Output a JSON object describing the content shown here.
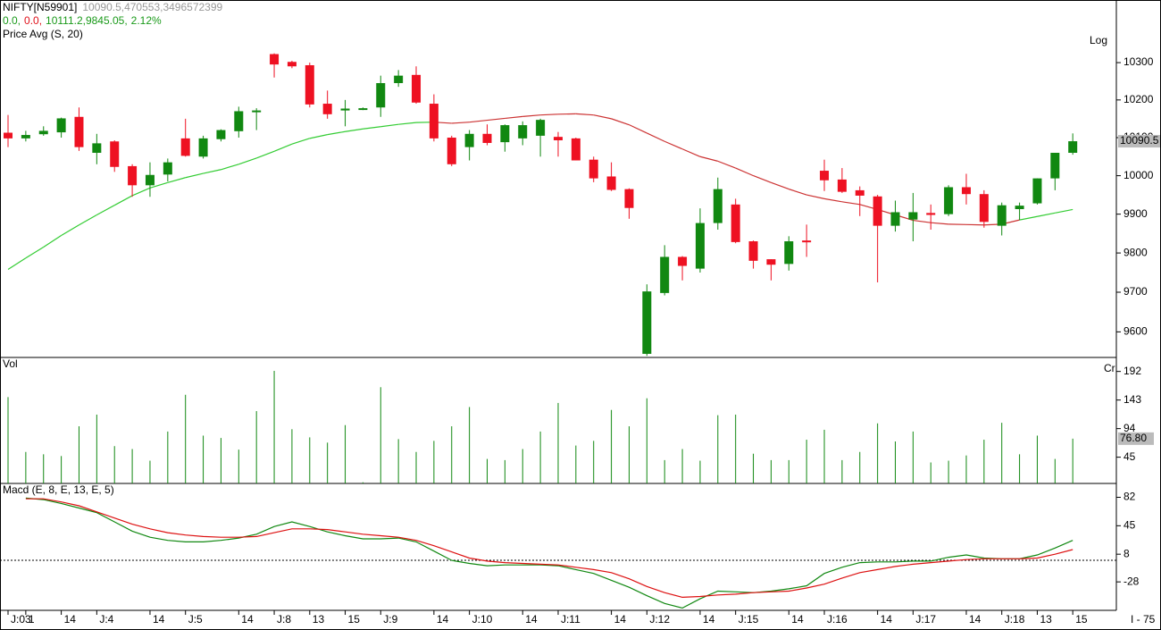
{
  "chart_data": [
    {
      "type": "candlestick",
      "title": "NIFTY[N59901]",
      "subtitle": "10090.5,470553,3496572399",
      "stats": [
        {
          "text": "0.0,",
          "color": "#1a9a1a"
        },
        {
          "text": "0.0,",
          "color": "#e0101a"
        },
        {
          "text": "10111.2,9845.05,",
          "color": "#1a9a1a"
        },
        {
          "text": "2.12%",
          "color": "#1a9a1a"
        }
      ],
      "scale_label": "Log",
      "log_scale": true,
      "ylim": [
        9536,
        10470
      ],
      "yticks": [
        9600,
        9700,
        9800,
        9900,
        10000,
        10100,
        10200,
        10300
      ],
      "up_color": "#118811",
      "down_color": "#ee1122",
      "open": [
        10113,
        10098,
        10109,
        10114,
        10155,
        10060,
        10090,
        10025,
        9975,
        10003,
        10098,
        10050,
        10096,
        10117,
        10168,
        10323,
        10302,
        10293,
        10190,
        10172,
        10176,
        10180,
        10245,
        10267,
        10190,
        10100,
        10075,
        10110,
        10088,
        10098,
        10105,
        10102,
        10098,
        10042,
        9998,
        9965,
        9545,
        9698,
        9790,
        9760,
        9877,
        9925,
        9830,
        9784,
        9772,
        9832,
        10013,
        9990,
        9962,
        9946,
        9870,
        9886,
        9903,
        9900,
        9970,
        9952,
        9870,
        9913,
        9928,
        9993,
        10060
      ],
      "high": [
        10160,
        10118,
        10130,
        10153,
        10180,
        10110,
        10093,
        10030,
        10035,
        10045,
        10150,
        10105,
        10122,
        10182,
        10178,
        10325,
        10305,
        10300,
        10225,
        10200,
        10180,
        10265,
        10280,
        10290,
        10215,
        10105,
        10120,
        10135,
        10135,
        10143,
        10150,
        10115,
        10100,
        10050,
        10035,
        9967,
        9720,
        9820,
        9792,
        9915,
        9995,
        9940,
        9832,
        9784,
        9843,
        9873,
        10042,
        10020,
        9972,
        9950,
        9935,
        9955,
        9925,
        9975,
        10005,
        9962,
        9930,
        9930,
        9993,
        10060,
        10111.2
      ],
      "low": [
        10075,
        10090,
        10105,
        10100,
        10065,
        10030,
        10010,
        9945,
        9945,
        9985,
        10050,
        10045,
        10090,
        10100,
        10120,
        10260,
        10285,
        10180,
        10150,
        10130,
        10173,
        10155,
        10235,
        10190,
        10090,
        10025,
        10040,
        10080,
        10063,
        10080,
        10050,
        10050,
        10040,
        9983,
        9960,
        9888,
        9540,
        9692,
        9730,
        9750,
        9860,
        9825,
        9760,
        9730,
        9755,
        9790,
        9960,
        9955,
        9895,
        9725,
        9855,
        9830,
        9860,
        9895,
        9925,
        9865,
        9845,
        9885,
        9925,
        9962,
        10055
      ],
      "close": [
        10098,
        10107,
        10118,
        10151,
        10075,
        10085,
        10023,
        9975,
        10002,
        10035,
        10052,
        10098,
        10120,
        10170,
        10172,
        10295,
        10290,
        10188,
        10162,
        10177,
        10178,
        10245,
        10265,
        10193,
        10098,
        10030,
        10110,
        10086,
        10133,
        10133,
        10147,
        10093,
        10040,
        9993,
        9963,
        9916,
        9702,
        9790,
        9767,
        9877,
        9965,
        9828,
        9780,
        9770,
        9830,
        9828,
        9988,
        9958,
        9948,
        9870,
        9905,
        9905,
        9898,
        9970,
        9952,
        9880,
        9923,
        9922,
        9993,
        10060,
        10090.5
      ],
      "ma": {
        "name": "Price Avg (S, 20)",
        "values": [
          9758,
          9787,
          9815,
          9845,
          9872,
          9898,
          9923,
          9948,
          9968,
          9982,
          9995,
          10006,
          10016,
          10030,
          10046,
          10064,
          10083,
          10098,
          10108,
          10116,
          10123,
          10129,
          10135,
          10140,
          10141,
          10138,
          10141,
          10146,
          10151,
          10156,
          10160,
          10162,
          10163,
          10160,
          10150,
          10134,
          10112,
          10090,
          10070,
          10050,
          10038,
          10020,
          10000,
          9982,
          9965,
          9950,
          9940,
          9932,
          9925,
          9912,
          9898,
          9884,
          9878,
          9874,
          9873,
          9872,
          9874,
          9885,
          9894,
          9903,
          9912
        ],
        "colors": [
          "#33cc33",
          "#33cc33",
          "#33cc33",
          "#33cc33",
          "#33cc33",
          "#33cc33",
          "#33cc33",
          "#33cc33",
          "#33cc33",
          "#33cc33",
          "#33cc33",
          "#33cc33",
          "#33cc33",
          "#33cc33",
          "#33cc33",
          "#33cc33",
          "#33cc33",
          "#33cc33",
          "#33cc33",
          "#33cc33",
          "#33cc33",
          "#33cc33",
          "#33cc33",
          "#33cc33",
          "#cc3333",
          "#cc3333",
          "#cc3333",
          "#cc3333",
          "#cc3333",
          "#cc3333",
          "#cc3333",
          "#cc3333",
          "#cc3333",
          "#cc3333",
          "#cc3333",
          "#cc3333",
          "#cc3333",
          "#cc3333",
          "#cc3333",
          "#cc3333",
          "#cc3333",
          "#cc3333",
          "#cc3333",
          "#cc3333",
          "#cc3333",
          "#cc3333",
          "#cc3333",
          "#cc3333",
          "#cc3333",
          "#cc3333",
          "#cc3333",
          "#cc3333",
          "#cc3333",
          "#cc3333",
          "#cc3333",
          "#cc3333",
          "#cc3333",
          "#33cc33",
          "#33cc33",
          "#33cc33",
          "#33cc33"
        ]
      }
    },
    {
      "type": "bar",
      "title": "Vol",
      "scale_label": "Cr",
      "color": "#118811",
      "ylim": [
        0,
        216
      ],
      "yticks": [
        45,
        94,
        143,
        192
      ],
      "values": [
        148,
        54,
        50,
        47,
        98,
        118,
        64,
        59,
        39,
        89,
        152,
        82,
        78,
        58,
        124,
        193,
        93,
        79,
        70,
        100,
        2,
        165,
        76,
        54,
        73,
        98,
        131,
        42,
        40,
        59,
        89,
        138,
        65,
        73,
        126,
        98,
        146,
        40,
        59,
        39,
        117,
        118,
        51,
        40,
        40,
        75,
        92,
        40,
        54,
        103,
        72,
        89,
        36,
        39,
        48,
        75,
        104,
        50,
        82,
        42,
        76.8
      ],
      "value_labels": [
        null,
        null,
        null,
        null,
        null,
        null,
        null,
        null,
        null,
        null,
        null,
        null,
        null,
        null,
        null,
        null,
        null,
        null,
        null,
        null,
        null,
        null,
        null,
        null,
        null,
        null,
        null,
        null,
        null,
        null,
        null,
        null,
        null,
        null,
        null,
        null,
        null,
        null,
        null,
        null,
        null,
        null,
        null,
        null,
        null,
        null,
        null,
        null,
        null,
        null,
        null,
        null,
        null,
        null,
        null,
        null,
        null,
        null,
        null,
        null,
        "76.80"
      ]
    },
    {
      "type": "line",
      "title": "Macd (E, 8, E, 13, E, 5)",
      "ylim": [
        -65,
        100
      ],
      "yticks": [
        -28,
        8,
        45,
        82
      ],
      "zero_line": true,
      "categories": [
        "J:03",
        "1",
        null,
        "14",
        null,
        "J:4",
        null,
        null,
        "14",
        null,
        "J:5",
        null,
        null,
        "14",
        null,
        "J:8",
        null,
        "13",
        null,
        "15",
        null,
        "J:9",
        null,
        null,
        "14",
        null,
        "J:10",
        null,
        null,
        "14",
        null,
        "J:11",
        null,
        null,
        "14",
        null,
        "J:12",
        null,
        null,
        "14",
        null,
        "J:15",
        null,
        null,
        "14",
        null,
        "J:16",
        null,
        null,
        "14",
        null,
        "J:17",
        null,
        null,
        "14",
        null,
        "J:18",
        null,
        "13",
        null,
        "15"
      ],
      "footer": "I - 75",
      "series": [
        {
          "color": "#118811",
          "values": [
            null,
            81,
            79,
            74,
            68,
            62,
            50,
            38,
            30,
            26,
            24,
            24,
            26,
            29,
            34,
            44,
            50,
            44,
            37,
            32,
            28,
            28,
            29,
            24,
            12,
            0,
            -4,
            -7,
            -6,
            -6,
            -6,
            -7,
            -12,
            -17,
            -26,
            -35,
            -46,
            -56,
            -62,
            -50,
            -40,
            -41,
            -42,
            -40,
            -37,
            -33,
            -17,
            -9,
            -3,
            -2,
            -2,
            -1,
            -1,
            4,
            7,
            3,
            2,
            2,
            7,
            16,
            26
          ]
        },
        {
          "color": "#dd1111",
          "values": [
            null,
            80,
            80,
            76,
            71,
            63,
            55,
            47,
            41,
            36,
            33,
            31,
            30,
            30,
            31,
            36,
            41,
            41,
            40,
            37,
            34,
            32,
            30,
            26,
            19,
            11,
            3,
            -1,
            -3,
            -4,
            -5,
            -6,
            -9,
            -12,
            -16,
            -24,
            -34,
            -42,
            -48,
            -47,
            -45,
            -44,
            -42,
            -41,
            -40,
            -36,
            -31,
            -23,
            -16,
            -12,
            -8,
            -5,
            -3,
            -1,
            1,
            2,
            2,
            2,
            3,
            8,
            14
          ]
        }
      ]
    }
  ]
}
